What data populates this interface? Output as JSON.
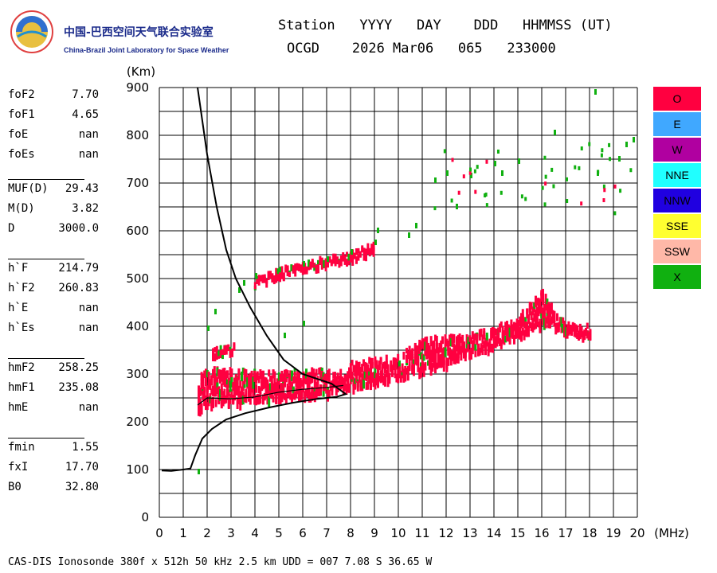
{
  "logo": {
    "cn": "中国-巴西空间天气联合实验室",
    "en": "China-Brazil Joint Laboratory for Space Weather"
  },
  "header": {
    "line1": "Station   YYYY   DAY    DDD   HHMMSS (UT)",
    "line2": "OCGD    2026 Mar06   065   233000"
  },
  "params": [
    {
      "k": "foF2",
      "v": "7.70"
    },
    {
      "k": "foF1",
      "v": "4.65"
    },
    {
      "k": "foE",
      "v": "nan"
    },
    {
      "k": "foEs",
      "v": "nan"
    },
    {
      "k": "MUF(D)",
      "v": "29.43"
    },
    {
      "k": "M(D)",
      "v": "3.82"
    },
    {
      "k": "D",
      "v": "3000.0"
    },
    {
      "k": "h`F",
      "v": "214.79"
    },
    {
      "k": "h`F2",
      "v": "260.83"
    },
    {
      "k": "h`E",
      "v": "nan"
    },
    {
      "k": "h`Es",
      "v": "nan"
    },
    {
      "k": "hmF2",
      "v": "258.25"
    },
    {
      "k": "hmF1",
      "v": "235.08"
    },
    {
      "k": "hmE",
      "v": "nan"
    },
    {
      "k": "fmin",
      "v": "1.55"
    },
    {
      "k": "fxI",
      "v": "17.70"
    },
    {
      "k": "B0",
      "v": "32.80"
    }
  ],
  "legend": [
    {
      "label": "O",
      "color": "#ff0040"
    },
    {
      "label": "E",
      "color": "#40a8ff"
    },
    {
      "label": "W",
      "color": "#b000a0"
    },
    {
      "label": "NNE",
      "color": "#20ffff"
    },
    {
      "label": "NNW",
      "color": "#2000e0"
    },
    {
      "label": "SSE",
      "color": "#ffff30"
    },
    {
      "label": "SSW",
      "color": "#ffb8a8"
    },
    {
      "label": "X",
      "color": "#10b010"
    }
  ],
  "footer": "CAS-DIS Ionosonde 380f x 512h 50 kHz 2.5 km UDD = 007 7.08 S 36.65 W",
  "chart_data": {
    "type": "scatter",
    "xlabel": "(MHz)",
    "ylabel": "(Km)",
    "xlim": [
      0,
      20
    ],
    "ylim": [
      0,
      900
    ],
    "xticks": [
      "0",
      "1",
      "2",
      "3",
      "4",
      "5",
      "6",
      "7",
      "8",
      "9",
      "10",
      "11",
      "12",
      "13",
      "14",
      "15",
      "16",
      "17",
      "18",
      "19",
      "20"
    ],
    "yticks": [
      "0",
      "100",
      "200",
      "300",
      "400",
      "500",
      "600",
      "700",
      "800",
      "900"
    ],
    "grid": true,
    "traces": {
      "o_bottom": [
        [
          1.6,
          220
        ],
        [
          2,
          232
        ],
        [
          3,
          237
        ],
        [
          4,
          240
        ],
        [
          5,
          245
        ],
        [
          6,
          250
        ],
        [
          7,
          256
        ],
        [
          7.7,
          262
        ],
        [
          8,
          266
        ],
        [
          9,
          275
        ],
        [
          10,
          290
        ],
        [
          11,
          305
        ],
        [
          12,
          318
        ],
        [
          13,
          338
        ],
        [
          14,
          355
        ],
        [
          15,
          375
        ],
        [
          15.6,
          390
        ],
        [
          16,
          400
        ],
        [
          16.5,
          395
        ],
        [
          17,
          380
        ],
        [
          17.5,
          375
        ],
        [
          18,
          378
        ]
      ],
      "o_top": [
        [
          1.6,
          290
        ],
        [
          2,
          308
        ],
        [
          3,
          305
        ],
        [
          4,
          302
        ],
        [
          5,
          300
        ],
        [
          6,
          305
        ],
        [
          7,
          305
        ],
        [
          7.7,
          300
        ],
        [
          8,
          320
        ],
        [
          9,
          328
        ],
        [
          10,
          335
        ],
        [
          11,
          370
        ],
        [
          12,
          375
        ],
        [
          13,
          380
        ],
        [
          14,
          395
        ],
        [
          15,
          420
        ],
        [
          15.8,
          460
        ],
        [
          16,
          470
        ],
        [
          16.5,
          430
        ],
        [
          17,
          410
        ],
        [
          17.5,
          395
        ],
        [
          18,
          400
        ]
      ],
      "o_multi": [
        [
          2.2,
          345
        ],
        [
          3,
          350
        ],
        [
          4,
          490
        ],
        [
          5,
          510
        ],
        [
          6,
          525
        ],
        [
          7,
          535
        ],
        [
          8,
          545
        ],
        [
          9,
          565
        ]
      ],
      "x_points": [
        [
          1.6,
          95
        ],
        [
          2,
          395
        ],
        [
          2.3,
          430
        ],
        [
          3.3,
          475
        ],
        [
          3.5,
          490
        ],
        [
          4,
          505
        ],
        [
          5,
          518
        ],
        [
          6,
          530
        ],
        [
          7,
          540
        ],
        [
          8,
          555
        ],
        [
          9,
          575
        ],
        [
          9.1,
          600
        ],
        [
          10.4,
          590
        ],
        [
          10.7,
          610
        ],
        [
          11.5,
          705
        ],
        [
          12,
          720
        ],
        [
          12.4,
          650
        ],
        [
          13,
          715
        ],
        [
          14,
          740
        ],
        [
          14.3,
          720
        ],
        [
          15,
          745
        ],
        [
          16.5,
          805
        ],
        [
          18.2,
          890
        ],
        [
          18.3,
          720
        ],
        [
          19.2,
          750
        ],
        [
          19.5,
          780
        ],
        [
          19.8,
          790
        ],
        [
          6,
          405
        ],
        [
          5.2,
          380
        ]
      ],
      "profile": [
        [
          0.1,
          98
        ],
        [
          0.5,
          97
        ],
        [
          1,
          100
        ],
        [
          1.3,
          102
        ],
        [
          1.5,
          130
        ],
        [
          1.8,
          165
        ],
        [
          2.2,
          185
        ],
        [
          2.8,
          205
        ],
        [
          3.6,
          218
        ],
        [
          4.6,
          230
        ],
        [
          5.6,
          240
        ],
        [
          6.6,
          248
        ],
        [
          7.4,
          252
        ],
        [
          7.8,
          258
        ],
        [
          7.2,
          280
        ],
        [
          6,
          300
        ],
        [
          5.2,
          330
        ],
        [
          4.5,
          380
        ],
        [
          3.8,
          440
        ],
        [
          3.2,
          500
        ],
        [
          2.8,
          560
        ],
        [
          2.4,
          650
        ],
        [
          2,
          760
        ],
        [
          1.6,
          900
        ]
      ],
      "profile_inner": [
        [
          1.6,
          235
        ],
        [
          2,
          250
        ],
        [
          3,
          248
        ],
        [
          4,
          252
        ],
        [
          5,
          262
        ],
        [
          6,
          268
        ],
        [
          7,
          272
        ],
        [
          7.7,
          276
        ]
      ]
    }
  }
}
